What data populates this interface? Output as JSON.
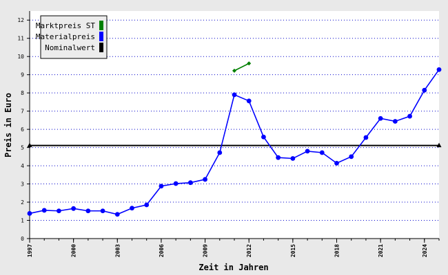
{
  "chart_data": {
    "type": "line",
    "xlabel": "Zeit in Jahren",
    "ylabel": "Preis in Euro",
    "xlim": [
      1997,
      2025
    ],
    "ylim": [
      0,
      12.5
    ],
    "x_ticks": [
      1997,
      2000,
      2003,
      2006,
      2009,
      2012,
      2015,
      2018,
      2021,
      2024
    ],
    "y_ticks": [
      0,
      1,
      2,
      3,
      4,
      5,
      6,
      7,
      8,
      9,
      10,
      11,
      12
    ],
    "grid": "horizontal dotted",
    "legend_position": "top-left",
    "series": [
      {
        "name": "Marktpreis ST",
        "color": "#008000",
        "marker": "diamond",
        "points": [
          [
            2011,
            9.22
          ],
          [
            2012,
            9.62
          ]
        ]
      },
      {
        "name": "Materialpreis",
        "color": "#0000ff",
        "marker": "circle",
        "points": [
          [
            1997,
            1.38
          ],
          [
            1998,
            1.55
          ],
          [
            1999,
            1.52
          ],
          [
            2000,
            1.65
          ],
          [
            2001,
            1.52
          ],
          [
            2002,
            1.52
          ],
          [
            2003,
            1.33
          ],
          [
            2004,
            1.67
          ],
          [
            2005,
            1.85
          ],
          [
            2006,
            2.88
          ],
          [
            2007,
            3.02
          ],
          [
            2008,
            3.07
          ],
          [
            2009,
            3.25
          ],
          [
            2010,
            4.72
          ],
          [
            2011,
            7.9
          ],
          [
            2012,
            7.56
          ],
          [
            2013,
            5.58
          ],
          [
            2014,
            4.45
          ],
          [
            2015,
            4.4
          ],
          [
            2016,
            4.8
          ],
          [
            2017,
            4.72
          ],
          [
            2018,
            4.14
          ],
          [
            2019,
            4.5
          ],
          [
            2020,
            5.55
          ],
          [
            2021,
            6.6
          ],
          [
            2022,
            6.44
          ],
          [
            2023,
            6.72
          ],
          [
            2024,
            8.15
          ],
          [
            2025,
            9.28
          ]
        ]
      },
      {
        "name": "Nominalwert",
        "color": "#000000",
        "marker": "triangle",
        "points": [
          [
            1997,
            5.11
          ],
          [
            2025,
            5.11
          ]
        ]
      }
    ]
  }
}
